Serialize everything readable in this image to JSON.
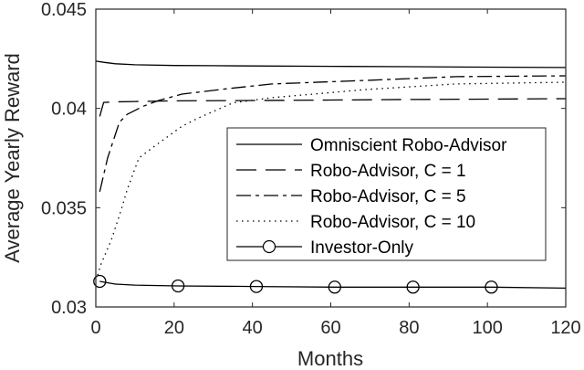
{
  "chart_data": {
    "type": "line",
    "title": "",
    "xlabel": "Months",
    "ylabel": "Average Yearly Reward",
    "xlim": [
      0,
      120
    ],
    "ylim": [
      0.03,
      0.045
    ],
    "xticks": [
      0,
      20,
      40,
      60,
      80,
      100,
      120
    ],
    "xtick_labels": [
      "0",
      "20",
      "40",
      "60",
      "80",
      "100",
      "120"
    ],
    "yticks": [
      0.03,
      0.035,
      0.04,
      0.045
    ],
    "ytick_labels": [
      "0.03",
      "0.035",
      "0.04",
      "0.045"
    ],
    "grid": false,
    "legend_position": "inside center-right",
    "series": [
      {
        "name": "Omniscient Robo-Advisor",
        "style": "solid",
        "marker": "none",
        "x": [
          0,
          2,
          5,
          10,
          20,
          30,
          40,
          60,
          80,
          100,
          120
        ],
        "y": [
          0.04238,
          0.04232,
          0.04225,
          0.0422,
          0.04216,
          0.04215,
          0.04214,
          0.04212,
          0.0421,
          0.04208,
          0.04206
        ]
      },
      {
        "name": "Robo-Advisor, C = 1",
        "style": "dashed",
        "marker": "none",
        "x": [
          1,
          2,
          5,
          10,
          20,
          40,
          60,
          80,
          100,
          120
        ],
        "y": [
          0.0396,
          0.0403,
          0.04033,
          0.04035,
          0.04038,
          0.0404,
          0.04042,
          0.04045,
          0.04047,
          0.04049
        ]
      },
      {
        "name": "Robo-Advisor, C = 5",
        "style": "dashdot",
        "marker": "none",
        "x": [
          1,
          3,
          6,
          8,
          12,
          16,
          22,
          34,
          45,
          69,
          92,
          120
        ],
        "y": [
          0.0358,
          0.0375,
          0.0393,
          0.0397,
          0.0401,
          0.0404,
          0.04072,
          0.041,
          0.04123,
          0.04141,
          0.0416,
          0.04164
        ]
      },
      {
        "name": "Robo-Advisor, C = 10",
        "style": "dotted",
        "marker": "none",
        "x": [
          0.5,
          1.2,
          4,
          6.5,
          8,
          11,
          15,
          22,
          26,
          35,
          45,
          69,
          92,
          120
        ],
        "y": [
          0.0316,
          0.0321,
          0.0334,
          0.0349,
          0.0359,
          0.0375,
          0.0381,
          0.0391,
          0.0395,
          0.04028,
          0.04054,
          0.04095,
          0.04123,
          0.04132
        ]
      },
      {
        "name": "Investor-Only",
        "style": "solid",
        "marker": "circle",
        "marker_x": [
          1,
          21,
          41,
          61,
          81,
          101
        ],
        "x": [
          1,
          5,
          10,
          21,
          41,
          61,
          81,
          101,
          120
        ],
        "y": [
          0.03129,
          0.03115,
          0.0311,
          0.03106,
          0.03103,
          0.031,
          0.031,
          0.031,
          0.03095
        ]
      }
    ]
  },
  "axes": {
    "xlabel": "Months",
    "ylabel": "Average Yearly Reward"
  },
  "legend": {
    "items": [
      {
        "label": "Omniscient Robo-Advisor",
        "style": "solid"
      },
      {
        "label": "Robo-Advisor, C = 1",
        "style": "dashed"
      },
      {
        "label": "Robo-Advisor, C = 5",
        "style": "dashdot"
      },
      {
        "label": "Robo-Advisor, C = 10",
        "style": "dotted"
      },
      {
        "label": "Investor-Only",
        "style": "solid-circle"
      }
    ]
  },
  "colors": {
    "line": "#000000",
    "axis": "#262626",
    "background": "#ffffff"
  }
}
